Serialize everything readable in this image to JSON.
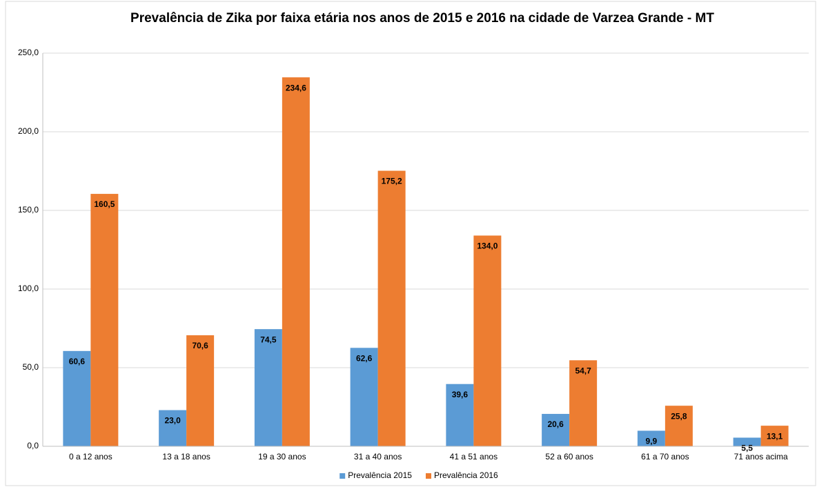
{
  "chart_data": {
    "type": "bar",
    "title": "Prevalência de Zika por faixa etária nos anos de 2015 e 2016 na cidade de Varzea Grande - MT",
    "categories": [
      "0 a 12 anos",
      "13 a 18 anos",
      "19 a 30 anos",
      "31 a 40 anos",
      "41 a 51 anos",
      "52 a 60 anos",
      "61 a 70 anos",
      "71 anos acima"
    ],
    "series": [
      {
        "name": "Prevalência 2015",
        "color": "#5b9bd5",
        "values": [
          60.6,
          23.0,
          74.5,
          62.6,
          39.6,
          20.6,
          9.9,
          5.5
        ],
        "value_labels": [
          "60,6",
          "23,0",
          "74,5",
          "62,6",
          "39,6",
          "20,6",
          "9,9",
          "5,5"
        ]
      },
      {
        "name": "Prevalência 2016",
        "color": "#ed7d31",
        "values": [
          160.5,
          70.6,
          234.6,
          175.2,
          134.0,
          54.7,
          25.8,
          13.1
        ],
        "value_labels": [
          "160,5",
          "70,6",
          "234,6",
          "175,2",
          "134,0",
          "54,7",
          "25,8",
          "13,1"
        ]
      }
    ],
    "ylim": [
      0,
      250
    ],
    "yticks": [
      {
        "value": 0,
        "label": "0,0"
      },
      {
        "value": 50,
        "label": "50,0"
      },
      {
        "value": 100,
        "label": "100,0"
      },
      {
        "value": 150,
        "label": "150,0"
      },
      {
        "value": 200,
        "label": "200,0"
      },
      {
        "value": 250,
        "label": "250,0"
      }
    ],
    "grid": true,
    "legend": "bottom"
  }
}
